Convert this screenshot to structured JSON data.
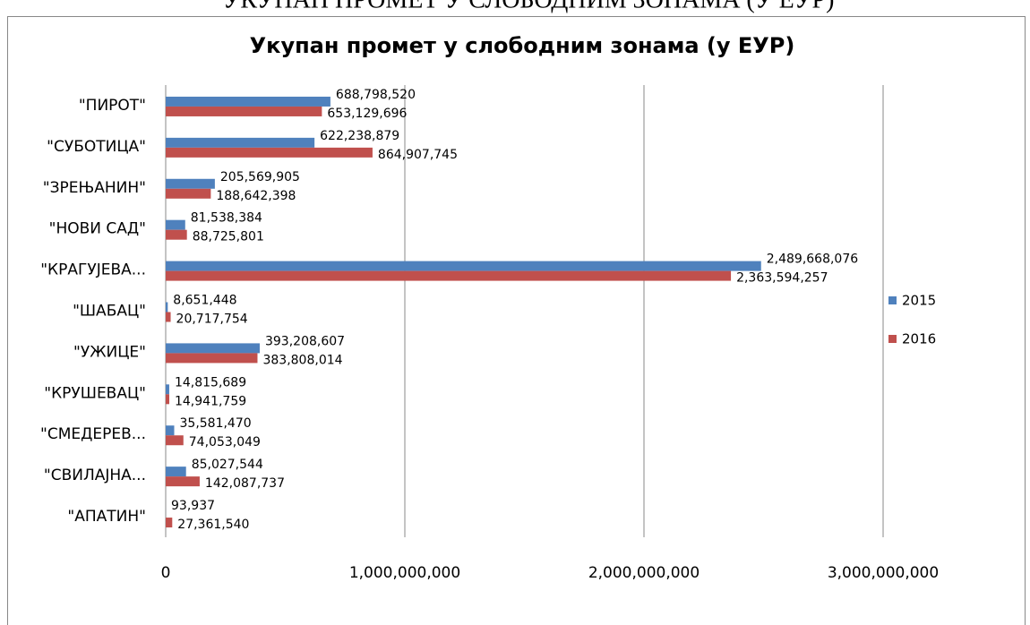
{
  "header": "УКУПАН ПРОМЕТ У СЛОБОДНИМ ЗОНАМА (У ЕУР)",
  "chart_data": {
    "type": "hbar",
    "title": "Укупан промет у слободним зонама (у ЕУР)",
    "categories": [
      "\"ПИРОТ\"",
      "\"СУБОТИЦА\"",
      "\"ЗРЕЊАНИН\"",
      "\"НОВИ САД\"",
      "\"КРАГУЈЕВА...",
      "\"ШАБАЦ\"",
      "\"УЖИЦЕ\"",
      "\"КРУШЕВАЦ\"",
      "\"СМЕДЕРЕВ...",
      "\"СВИЛАЈНА...",
      "\"АПАТИН\""
    ],
    "series": [
      {
        "name": "2015",
        "color": "#4f81bd",
        "values": [
          688798520,
          622238879,
          205569905,
          81538384,
          2489668076,
          8651448,
          393208607,
          14815689,
          35581470,
          85027544,
          93937
        ],
        "value_labels": [
          "688,798,520",
          "622,238,879",
          "205,569,905",
          "81,538,384",
          "2,489,668,076",
          "8,651,448",
          "393,208,607",
          "14,815,689",
          "35,581,470",
          "85,027,544",
          "93,937"
        ]
      },
      {
        "name": "2016",
        "color": "#c0504d",
        "values": [
          653129696,
          864907745,
          188642398,
          88725801,
          2363594257,
          20717754,
          383808014,
          14941759,
          74053049,
          142087737,
          27361540
        ],
        "value_labels": [
          "653,129,696",
          "864,907,745",
          "188,642,398",
          "88,725,801",
          "2,363,594,257",
          "20,717,754",
          "383,808,014",
          "14,941,759",
          "74,053,049",
          "142,087,737",
          "27,361,540"
        ]
      }
    ],
    "xlim": [
      0,
      3000000000
    ],
    "xticks": [
      0,
      {
        "value": 1000000000,
        "label": "1,000,000,000"
      },
      {
        "value": 2000000000,
        "label": "2,000,000,000"
      },
      {
        "value": 3000000000,
        "label": "3,000,000,000"
      }
    ],
    "grid": true,
    "legend": "right"
  }
}
